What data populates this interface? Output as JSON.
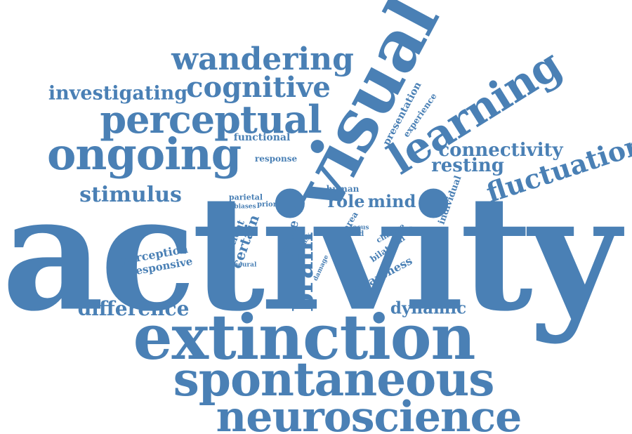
{
  "word_cloud": {
    "color": "#4a80b5",
    "background": "#ffffff",
    "words": {
      "activity": "activity",
      "extinction": "extinction",
      "spontaneous": "spontaneous",
      "neuroscience": "neuroscience",
      "visual": "visual",
      "learning": "learning",
      "ongoing": "ongoing",
      "perceptual": "perceptual",
      "wandering": "wandering",
      "cognitive": "cognitive",
      "investigating": "investigating",
      "stimulus": "stimulus",
      "fluctuation": "fluctuation",
      "connectivity": "connectivity",
      "resting": "resting",
      "difference": "difference",
      "dynamic": "dynamic",
      "brain": "brain",
      "role": "role",
      "mind": "mind",
      "awareness": "awareness",
      "presentation": "presentation",
      "experience": "experience",
      "functional": "functional",
      "response": "response",
      "human": "human",
      "parietal": "parietal",
      "biases": "biases",
      "prior": "prior",
      "trial": "trial",
      "patient": "patient",
      "certain": "certain",
      "state": "state",
      "task": "task",
      "area": "area",
      "focus": "focus",
      "field": "field",
      "change": "change",
      "bilateral": "bilateral",
      "individual": "individual",
      "perception": "perception",
      "responsive": "responsive",
      "neural": "neural",
      "damage": "damage"
    }
  }
}
